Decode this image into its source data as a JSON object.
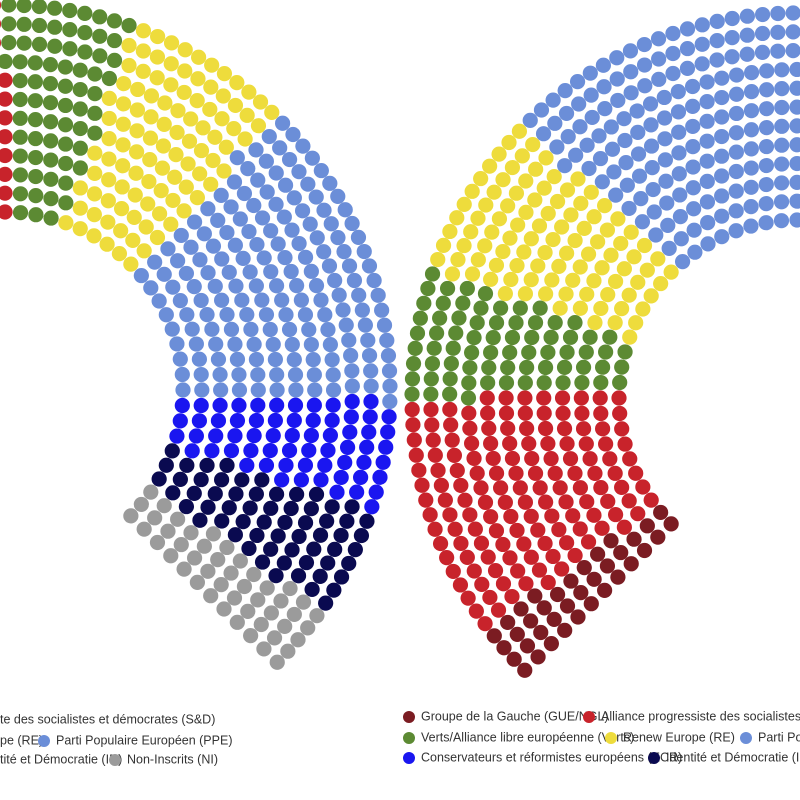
{
  "parliament": {
    "groups": [
      {
        "color": "#7b1c22",
        "seats": 37
      },
      {
        "color": "#c8232b",
        "seats": 145
      },
      {
        "color": "#5c8a33",
        "seats": 72
      },
      {
        "color": "#eedc3c",
        "seats": 102
      },
      {
        "color": "#6b8ed8",
        "seats": 176
      },
      {
        "color": "#1a16f0",
        "seats": 64
      },
      {
        "color": "#0a0a50",
        "seats": 62
      },
      {
        "color": "#9b9b9b",
        "seats": 47
      }
    ]
  },
  "legend_left": [
    {
      "label": "te des socialistes et démocrates (S&D)"
    },
    {
      "label": "pe (RE)"
    },
    {
      "label": "Parti Populaire Européen (PPE)",
      "color": "#6b8ed8"
    },
    {
      "label": "tité et Démocratie (ID)"
    },
    {
      "label": "Non-Inscrits (NI)",
      "color": "#9b9b9b"
    }
  ],
  "legend_right": [
    {
      "label": "Groupe de la Gauche (GUE/NGL)",
      "color": "#7b1c22"
    },
    {
      "label": "Alliance progressiste des socialistes et dém",
      "color": "#c8232b"
    },
    {
      "label": "Verts/Alliance libre européenne (Verts)",
      "color": "#5c8a33"
    },
    {
      "label": "Renew Europe (RE)",
      "color": "#eedc3c"
    },
    {
      "label": "Parti Popula",
      "color": "#6b8ed8"
    },
    {
      "label": "Conservateurs et réformistes européens (ECR)",
      "color": "#1a16f0"
    },
    {
      "label": "Identité et Démocratie (ID)",
      "color": "#0a0a50"
    }
  ]
}
